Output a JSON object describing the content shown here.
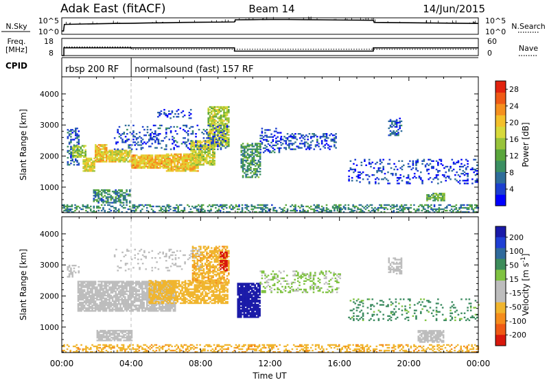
{
  "header": {
    "radar": "Adak East (fitACF)",
    "beam": "Beam 14",
    "date": "14/Jun/2015"
  },
  "colors": {
    "power_scale": [
      "#0000ff",
      "#1c3fd0",
      "#2e6d9a",
      "#3b8f62",
      "#5aa63c",
      "#98c33a",
      "#d7d93a",
      "#f3c02b",
      "#f5901f",
      "#ef5a16",
      "#e2230f"
    ],
    "velocity_scale": [
      "#1a1aa8",
      "#1f3fd4",
      "#2f6a9c",
      "#3d8c5a",
      "#7fc241",
      "#bdbdbd",
      "#bdbdbd",
      "#f0b52e",
      "#f58c1c",
      "#ef5a15",
      "#d8180c"
    ],
    "ground_scatter": "#bdbdbd",
    "frame": "#000000"
  },
  "chart_data": [
    {
      "type": "line",
      "name": "noise-panel",
      "ylabel_left": "N.Sky",
      "ylabel_right": "N.Search",
      "left_ticks": [
        "10^5",
        "10^0"
      ],
      "right_ticks": [
        "10^5",
        "10^0"
      ],
      "x_range_hours": [
        0,
        24
      ],
      "series": [
        {
          "label": "N.Sky",
          "style": "solid",
          "points": [
            [
              0.0,
              0.2
            ],
            [
              0.1,
              0.2
            ],
            [
              0.15,
              0.6
            ],
            [
              1.0,
              0.62
            ],
            [
              2.0,
              0.64
            ],
            [
              3.0,
              0.66
            ],
            [
              4.0,
              0.67
            ],
            [
              5.0,
              0.69
            ],
            [
              6.0,
              0.7
            ],
            [
              7.0,
              0.72
            ],
            [
              8.0,
              0.73
            ],
            [
              9.0,
              0.74
            ],
            [
              9.95,
              0.75
            ],
            [
              10.0,
              0.88
            ],
            [
              11.0,
              0.89
            ],
            [
              12.0,
              0.9
            ],
            [
              13.0,
              0.9
            ],
            [
              14.0,
              0.89
            ],
            [
              15.0,
              0.88
            ],
            [
              16.0,
              0.87
            ],
            [
              17.0,
              0.86
            ],
            [
              17.95,
              0.85
            ],
            [
              18.0,
              0.72
            ],
            [
              19.0,
              0.71
            ],
            [
              20.0,
              0.7
            ],
            [
              21.0,
              0.69
            ],
            [
              22.0,
              0.68
            ],
            [
              23.0,
              0.67
            ],
            [
              24.0,
              0.66
            ]
          ]
        }
      ]
    },
    {
      "type": "line",
      "name": "frequency-panel",
      "ylabel_left": "Freq. [MHz]",
      "ylabel_right": "Nave",
      "left_ticks": [
        "18",
        "8"
      ],
      "right_ticks": [
        "60",
        "0"
      ],
      "x_range_hours": [
        0,
        24
      ],
      "series": [
        {
          "label": "Freq.",
          "style": "solid",
          "points": [
            [
              0.0,
              8.0
            ],
            [
              0.12,
              8.0
            ],
            [
              0.12,
              12.5
            ],
            [
              9.95,
              12.5
            ],
            [
              9.95,
              10.6
            ],
            [
              17.95,
              10.6
            ],
            [
              17.95,
              12.5
            ],
            [
              24.0,
              12.5
            ]
          ]
        },
        {
          "label": "Nave",
          "style": "dotted",
          "points": [
            [
              0.12,
              30
            ],
            [
              4.0,
              30
            ],
            [
              4.0,
              22
            ],
            [
              24.0,
              22
            ]
          ]
        }
      ]
    },
    {
      "type": "table",
      "name": "cpid-panel",
      "label": "CPID",
      "segments": [
        {
          "start_hour": 0.0,
          "end_hour": 4.0,
          "label": "rbsp 200 RF"
        },
        {
          "start_hour": 4.0,
          "end_hour": 24.0,
          "label": "normalsound (fast) 157 RF"
        }
      ]
    },
    {
      "type": "heatmap",
      "name": "power-panel",
      "ylabel": "Slant Range [km]",
      "yticks": [
        1000,
        2000,
        3000,
        4000
      ],
      "ylim": [
        180,
        4550
      ],
      "x_range_hours": [
        0,
        24
      ],
      "colorbar": {
        "label": "Power [dB]",
        "ticks": [
          4,
          8,
          12,
          16,
          20,
          24,
          28
        ],
        "range": [
          0,
          30
        ]
      },
      "regions": [
        {
          "t0": 0.3,
          "t1": 1.0,
          "r0": 1700,
          "r1": 2900,
          "level": 6,
          "density": 0.45
        },
        {
          "t0": 0.6,
          "t1": 1.4,
          "r0": 1950,
          "r1": 2350,
          "level": 15,
          "density": 0.7
        },
        {
          "t0": 1.2,
          "t1": 1.9,
          "r0": 1500,
          "r1": 1950,
          "level": 18,
          "density": 0.8
        },
        {
          "t0": 1.9,
          "t1": 2.6,
          "r0": 1800,
          "r1": 2350,
          "level": 20,
          "density": 0.85
        },
        {
          "t0": 2.6,
          "t1": 4.0,
          "r0": 1800,
          "r1": 2200,
          "level": 18,
          "density": 0.85
        },
        {
          "t0": 4.0,
          "t1": 6.0,
          "r0": 1600,
          "r1": 2050,
          "level": 21,
          "density": 0.9
        },
        {
          "t0": 6.0,
          "t1": 7.8,
          "r0": 1500,
          "r1": 2050,
          "level": 20,
          "density": 0.85
        },
        {
          "t0": 7.4,
          "t1": 8.8,
          "r0": 1700,
          "r1": 2500,
          "level": 17,
          "density": 0.8
        },
        {
          "t0": 8.4,
          "t1": 9.6,
          "r0": 2300,
          "r1": 3600,
          "level": 16,
          "density": 0.75
        },
        {
          "t0": 3.0,
          "t1": 9.5,
          "r0": 2200,
          "r1": 3000,
          "level": 5,
          "density": 0.2
        },
        {
          "t0": 1.8,
          "t1": 3.9,
          "r0": 480,
          "r1": 900,
          "level": 9,
          "density": 0.6
        },
        {
          "t0": 10.3,
          "t1": 11.4,
          "r0": 1300,
          "r1": 2400,
          "level": 10,
          "density": 0.55
        },
        {
          "t0": 11.4,
          "t1": 12.6,
          "r0": 2100,
          "r1": 2900,
          "level": 5,
          "density": 0.3
        },
        {
          "t0": 12.6,
          "t1": 15.8,
          "r0": 2200,
          "r1": 2700,
          "level": 5,
          "density": 0.35
        },
        {
          "t0": 18.8,
          "t1": 19.6,
          "r0": 2650,
          "r1": 3200,
          "level": 6,
          "density": 0.45
        },
        {
          "t0": 16.5,
          "t1": 24.0,
          "r0": 1100,
          "r1": 1900,
          "level": 4,
          "density": 0.18
        },
        {
          "t0": 21.0,
          "t1": 22.0,
          "r0": 550,
          "r1": 800,
          "level": 12,
          "density": 0.75
        },
        {
          "t0": 5.5,
          "t1": 7.5,
          "r0": 3200,
          "r1": 3500,
          "level": 4,
          "density": 0.2
        },
        {
          "t0": 0.0,
          "t1": 24.0,
          "r0": 180,
          "r1": 420,
          "level": 9,
          "density": 0.4
        }
      ]
    },
    {
      "type": "heatmap",
      "name": "velocity-panel",
      "ylabel": "Slant Range [km]",
      "yticks": [
        1000,
        2000,
        3000,
        4000
      ],
      "ylim": [
        180,
        4550
      ],
      "x_range_hours": [
        0,
        24
      ],
      "xticks": [
        "00:00",
        "04:00",
        "08:00",
        "12:00",
        "16:00",
        "20:00",
        "00:00"
      ],
      "xlabel": "Time UT",
      "colorbar": {
        "label": "Velocity [m s^-1]",
        "ticks": [
          200,
          100,
          50,
          15,
          -15,
          -50,
          -100,
          -200
        ],
        "range": [
          -250,
          250
        ]
      },
      "regions": [
        {
          "t0": 0.3,
          "t1": 1.0,
          "r0": 2600,
          "r1": 3000,
          "vel": 0,
          "density": 0.35
        },
        {
          "t0": 0.9,
          "t1": 6.5,
          "r0": 1500,
          "r1": 2450,
          "vel": 0,
          "density": 0.8
        },
        {
          "t0": 5.0,
          "t1": 9.5,
          "r0": 1750,
          "r1": 2500,
          "vel": -35,
          "density": 0.7
        },
        {
          "t0": 7.5,
          "t1": 9.6,
          "r0": 2400,
          "r1": 3600,
          "vel": -40,
          "density": 0.6
        },
        {
          "t0": 9.1,
          "t1": 9.5,
          "r0": 2800,
          "r1": 3400,
          "vel": -230,
          "density": 0.6
        },
        {
          "t0": 2.0,
          "t1": 4.0,
          "r0": 550,
          "r1": 900,
          "vel": 0,
          "density": 0.8
        },
        {
          "t0": 10.1,
          "t1": 11.4,
          "r0": 1300,
          "r1": 2400,
          "vel": 230,
          "density": 0.9
        },
        {
          "t0": 11.4,
          "t1": 16.0,
          "r0": 2100,
          "r1": 2800,
          "vel": 20,
          "density": 0.3
        },
        {
          "t0": 18.8,
          "t1": 19.6,
          "r0": 2700,
          "r1": 3200,
          "vel": 0,
          "density": 0.55
        },
        {
          "t0": 16.5,
          "t1": 24.0,
          "r0": 1200,
          "r1": 1900,
          "vel": 60,
          "density": 0.15
        },
        {
          "t0": 20.5,
          "t1": 22.0,
          "r0": 500,
          "r1": 900,
          "vel": 0,
          "density": 0.8
        },
        {
          "t0": 0.0,
          "t1": 24.0,
          "r0": 180,
          "r1": 420,
          "vel": -40,
          "density": 0.35
        },
        {
          "t0": 3.0,
          "t1": 8.0,
          "r0": 2800,
          "r1": 3500,
          "vel": 0,
          "density": 0.15
        }
      ]
    }
  ]
}
